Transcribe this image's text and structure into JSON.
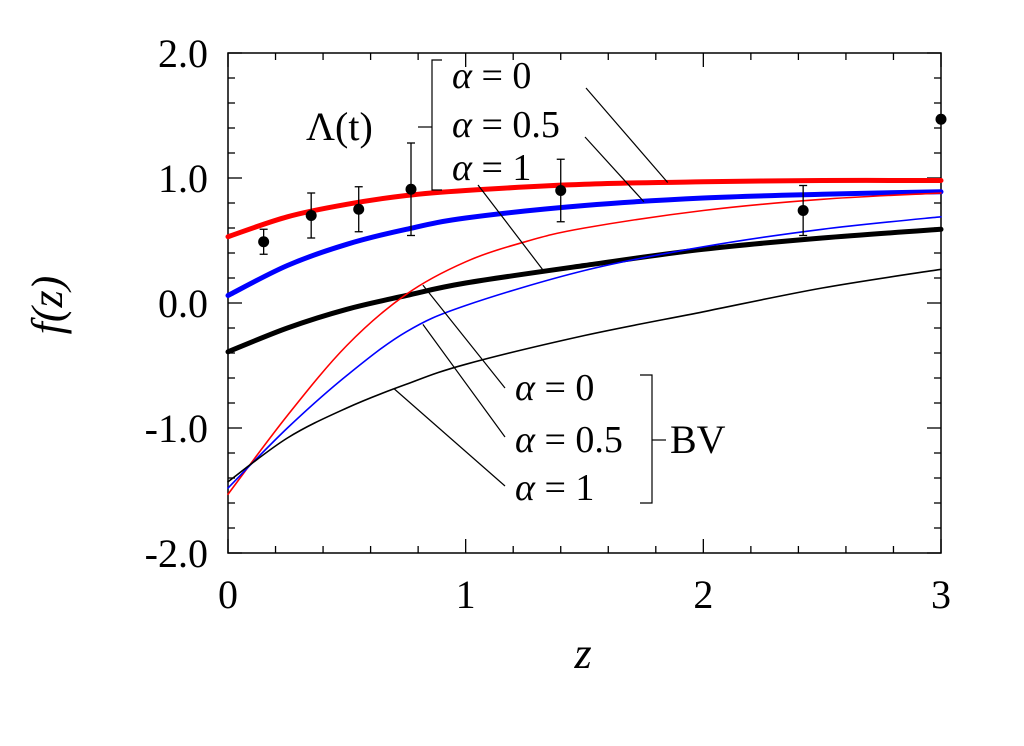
{
  "chart_data": {
    "type": "line",
    "title": "",
    "xlabel": "z",
    "ylabel": "f(z)",
    "xlim": [
      0,
      3
    ],
    "ylim": [
      -2,
      2
    ],
    "x_ticks": [
      "0",
      "1",
      "2",
      "3"
    ],
    "y_ticks": [
      "-2.0",
      "-1.0",
      "0.0",
      "1.0",
      "2.0"
    ],
    "grid": false,
    "legend_groups": [
      {
        "label": "Λ(t)",
        "entries": [
          {
            "symbol": "α",
            "text": "= 0",
            "series": "lambda-alpha-0"
          },
          {
            "symbol": "α",
            "text": "= 0.5",
            "series": "lambda-alpha-0.5"
          },
          {
            "symbol": "α",
            "text": "= 1",
            "series": "lambda-alpha-1"
          }
        ]
      },
      {
        "label": "BV",
        "entries": [
          {
            "symbol": "α",
            "text": "= 0",
            "series": "bv-alpha-0"
          },
          {
            "symbol": "α",
            "text": "= 0.5",
            "series": "bv-alpha-0.5"
          },
          {
            "symbol": "α",
            "text": "= 1",
            "series": "bv-alpha-1"
          }
        ]
      }
    ],
    "series": [
      {
        "id": "lambda-alpha-0",
        "color": "#ff0000",
        "width": "thick",
        "x": [
          0,
          0.25,
          0.5,
          0.75,
          1.0,
          1.5,
          2.0,
          2.5,
          3.0
        ],
        "y": [
          0.53,
          0.69,
          0.79,
          0.86,
          0.9,
          0.95,
          0.97,
          0.98,
          0.98
        ]
      },
      {
        "id": "lambda-alpha-0.5",
        "color": "#0000ff",
        "width": "thick",
        "x": [
          0,
          0.25,
          0.5,
          0.75,
          1.0,
          1.5,
          2.0,
          2.5,
          3.0
        ],
        "y": [
          0.06,
          0.3,
          0.47,
          0.59,
          0.68,
          0.78,
          0.84,
          0.87,
          0.89
        ]
      },
      {
        "id": "lambda-alpha-1",
        "color": "#000000",
        "width": "thick",
        "x": [
          0,
          0.25,
          0.5,
          0.75,
          1.0,
          1.5,
          2.0,
          2.5,
          3.0
        ],
        "y": [
          -0.39,
          -0.2,
          -0.05,
          0.06,
          0.16,
          0.3,
          0.43,
          0.52,
          0.59
        ]
      },
      {
        "id": "bv-alpha-0",
        "color": "#ff0000",
        "width": "thin",
        "x": [
          0,
          0.25,
          0.5,
          0.75,
          1.0,
          1.25,
          1.5,
          2.0,
          2.5,
          3.0
        ],
        "y": [
          -1.53,
          -0.9,
          -0.34,
          0.07,
          0.33,
          0.49,
          0.6,
          0.74,
          0.83,
          0.88
        ]
      },
      {
        "id": "bv-alpha-0.5",
        "color": "#0000ff",
        "width": "thin",
        "x": [
          0,
          0.25,
          0.5,
          0.75,
          1.0,
          1.5,
          2.0,
          2.5,
          3.0
        ],
        "y": [
          -1.48,
          -1.0,
          -0.58,
          -0.23,
          -0.02,
          0.26,
          0.45,
          0.59,
          0.69
        ]
      },
      {
        "id": "bv-alpha-1",
        "color": "#000000",
        "width": "thin",
        "x": [
          0,
          0.25,
          0.5,
          0.75,
          1.0,
          1.5,
          2.0,
          2.5,
          3.0
        ],
        "y": [
          -1.43,
          -1.08,
          -0.84,
          -0.65,
          -0.49,
          -0.26,
          -0.07,
          0.12,
          0.27
        ]
      }
    ],
    "observations": {
      "x": [
        0.15,
        0.35,
        0.55,
        0.77,
        1.4,
        2.42,
        3.0
      ],
      "y": [
        0.49,
        0.7,
        0.75,
        0.91,
        0.9,
        0.74,
        1.47
      ],
      "err": [
        0.1,
        0.18,
        0.18,
        0.37,
        0.25,
        0.2,
        0.0
      ]
    }
  }
}
